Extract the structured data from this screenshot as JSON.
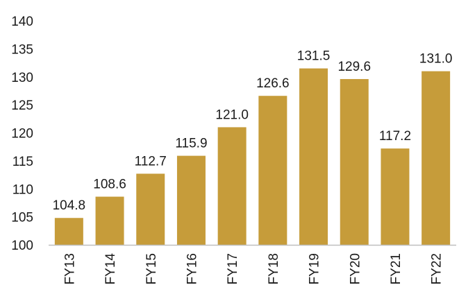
{
  "chart_data": {
    "type": "bar",
    "title": "",
    "xlabel": "",
    "ylabel": "",
    "categories": [
      "FY13",
      "FY14",
      "FY15",
      "FY16",
      "FY17",
      "FY18",
      "FY19",
      "FY20",
      "FY21",
      "FY22"
    ],
    "values": [
      104.8,
      108.6,
      112.7,
      115.9,
      121.0,
      126.6,
      131.5,
      129.6,
      117.2,
      131.0
    ],
    "data_labels": [
      "104.8",
      "108.6",
      "112.7",
      "115.9",
      "121.0",
      "126.6",
      "131.5",
      "129.6",
      "117.2",
      "131.0"
    ],
    "ylim": [
      100,
      140
    ],
    "yticks": [
      100,
      105,
      110,
      115,
      120,
      125,
      130,
      135,
      140
    ],
    "grid": false,
    "legend": "none",
    "bar_color": "#C69C3A",
    "axis_color": "#BFBFBF"
  }
}
